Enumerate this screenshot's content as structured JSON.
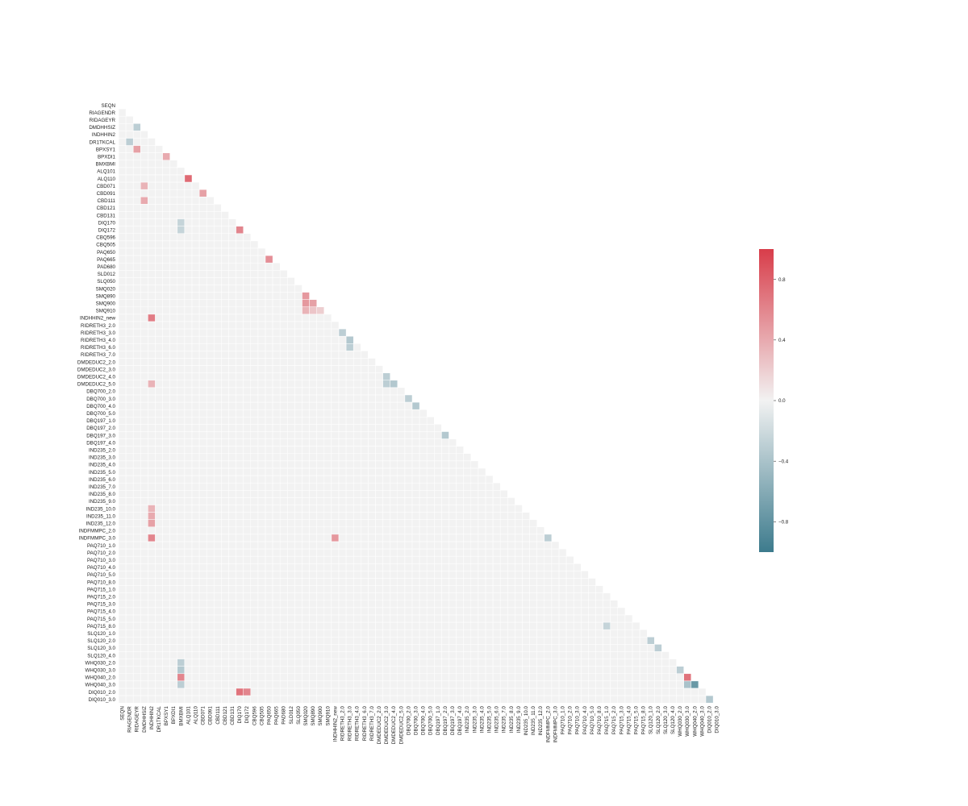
{
  "chart_data": {
    "type": "heatmap",
    "title": "",
    "xlabel": "",
    "ylabel": "",
    "layout": "lower-triangle correlation matrix (diagonal masked)",
    "variables": [
      "SEQN",
      "RIAGENDR",
      "RIDAGEYR",
      "DMDHHSIZ",
      "INDHHIN2",
      "DR1TKCAL",
      "BPXSY1",
      "BPXDI1",
      "BMXBMI",
      "ALQ101",
      "ALQ110",
      "CBD071",
      "CBD091",
      "CBD111",
      "CBD121",
      "CBD131",
      "DIQ170",
      "DIQ172",
      "CBQ596",
      "CBQ505",
      "PAQ650",
      "PAQ665",
      "PAD680",
      "SLD012",
      "SLQ050",
      "SMQ020",
      "SMQ890",
      "SMQ900",
      "SMQ910",
      "INDHHIN2_new",
      "RIDRETH3_2.0",
      "RIDRETH3_3.0",
      "RIDRETH3_4.0",
      "RIDRETH3_6.0",
      "RIDRETH3_7.0",
      "DMDEDUC2_2.0",
      "DMDEDUC2_3.0",
      "DMDEDUC2_4.0",
      "DMDEDUC2_5.0",
      "DBQ700_2.0",
      "DBQ700_3.0",
      "DBQ700_4.0",
      "DBQ700_5.0",
      "DBQ197_1.0",
      "DBQ197_2.0",
      "DBQ197_3.0",
      "DBQ197_4.0",
      "IND235_2.0",
      "IND235_3.0",
      "IND235_4.0",
      "IND235_5.0",
      "IND235_6.0",
      "IND235_7.0",
      "IND235_8.0",
      "IND235_9.0",
      "IND235_10.0",
      "IND235_11.0",
      "IND235_12.0",
      "INDFMMPC_2.0",
      "INDFMMPC_3.0",
      "PAQ710_1.0",
      "PAQ710_2.0",
      "PAQ710_3.0",
      "PAQ710_4.0",
      "PAQ710_5.0",
      "PAQ710_8.0",
      "PAQ715_1.0",
      "PAQ715_2.0",
      "PAQ715_3.0",
      "PAQ715_4.0",
      "PAQ715_5.0",
      "PAQ715_8.0",
      "SLQ120_1.0",
      "SLQ120_2.0",
      "SLQ120_3.0",
      "SLQ120_4.0",
      "WHQ030_2.0",
      "WHQ030_3.0",
      "WHQ040_2.0",
      "WHQ040_3.0",
      "DIQ010_2.0",
      "DIQ010_3.0"
    ],
    "colorbar": {
      "vmin": -1,
      "vmax": 1,
      "ticks": [
        0.8,
        0.4,
        0.0,
        -0.4,
        -0.8
      ],
      "tick_labels": [
        "0.8",
        "0.4",
        "0.0",
        "−0.4",
        "−0.8"
      ]
    },
    "colors": {
      "negative": "#3d7b8d",
      "neutral": "#f2f2f2",
      "positive": "#d83d4a",
      "gridline": "#ffffff"
    },
    "notable_correlations": [
      {
        "row": "ALQ110",
        "col": "ALQ101",
        "value": 0.75
      },
      {
        "row": "DIQ172",
        "col": "DIQ170",
        "value": 0.6
      },
      {
        "row": "INDHHIN2_new",
        "col": "INDHHIN2",
        "value": 0.65
      },
      {
        "row": "INDFMMPC_3.0",
        "col": "INDHHIN2",
        "value": 0.6
      },
      {
        "row": "INDFMMPC_3.0",
        "col": "INDHHIN2_new",
        "value": 0.5
      },
      {
        "row": "IND235_12.0",
        "col": "INDHHIN2",
        "value": 0.45
      },
      {
        "row": "IND235_11.0",
        "col": "INDHHIN2",
        "value": 0.4
      },
      {
        "row": "IND235_10.0",
        "col": "INDHHIN2",
        "value": 0.35
      },
      {
        "row": "DIQ010_2.0",
        "col": "DIQ170",
        "value": 0.7
      },
      {
        "row": "DIQ010_2.0",
        "col": "DIQ172",
        "value": 0.6
      },
      {
        "row": "WHQ040_2.0",
        "col": "BMXBMI",
        "value": 0.6
      },
      {
        "row": "WHQ040_2.0",
        "col": "WHQ030_3.0",
        "value": 0.7
      },
      {
        "row": "WHQ040_3.0",
        "col": "WHQ040_2.0",
        "value": -0.75
      },
      {
        "row": "WHQ040_3.0",
        "col": "WHQ030_3.0",
        "value": -0.4
      },
      {
        "row": "WHQ030_3.0",
        "col": "WHQ030_2.0",
        "value": -0.3
      },
      {
        "row": "WHQ030_2.0",
        "col": "BMXBMI",
        "value": -0.3
      },
      {
        "row": "WHQ030_3.0",
        "col": "BMXBMI",
        "value": -0.35
      },
      {
        "row": "WHQ040_3.0",
        "col": "BMXBMI",
        "value": -0.3
      },
      {
        "row": "SMQ890",
        "col": "SMQ020",
        "value": 0.5
      },
      {
        "row": "SMQ900",
        "col": "SMQ020",
        "value": 0.5
      },
      {
        "row": "SMQ900",
        "col": "SMQ890",
        "value": 0.45
      },
      {
        "row": "SMQ910",
        "col": "SMQ020",
        "value": 0.35
      },
      {
        "row": "SMQ910",
        "col": "SMQ890",
        "value": 0.25
      },
      {
        "row": "SMQ910",
        "col": "SMQ900",
        "value": 0.2
      },
      {
        "row": "PAQ665",
        "col": "PAQ650",
        "value": 0.55
      },
      {
        "row": "BPXDI1",
        "col": "BPXSY1",
        "value": 0.4
      },
      {
        "row": "BPXSY1",
        "col": "RIDAGEYR",
        "value": 0.45
      },
      {
        "row": "CBD091",
        "col": "CBD071",
        "value": 0.45
      },
      {
        "row": "CBD111",
        "col": "DMDHHSIZ",
        "value": 0.4
      },
      {
        "row": "CBD071",
        "col": "DMDHHSIZ",
        "value": 0.35
      },
      {
        "row": "DMDHHSIZ",
        "col": "RIDAGEYR",
        "value": -0.3
      },
      {
        "row": "DR1TKCAL",
        "col": "RIAGENDR",
        "value": -0.3
      },
      {
        "row": "DIQ170",
        "col": "BMXBMI",
        "value": -0.25
      },
      {
        "row": "DIQ172",
        "col": "BMXBMI",
        "value": -0.25
      },
      {
        "row": "DIQ010_3.0",
        "col": "DIQ010_2.0",
        "value": -0.35
      },
      {
        "row": "RIDRETH3_3.0",
        "col": "RIDRETH3_2.0",
        "value": -0.3
      },
      {
        "row": "RIDRETH3_4.0",
        "col": "RIDRETH3_3.0",
        "value": -0.35
      },
      {
        "row": "RIDRETH3_6.0",
        "col": "RIDRETH3_3.0",
        "value": -0.3
      },
      {
        "row": "DMDEDUC2_4.0",
        "col": "DMDEDUC2_3.0",
        "value": -0.3
      },
      {
        "row": "DMDEDUC2_5.0",
        "col": "DMDEDUC2_3.0",
        "value": -0.3
      },
      {
        "row": "DMDEDUC2_5.0",
        "col": "DMDEDUC2_4.0",
        "value": -0.35
      },
      {
        "row": "DMDEDUC2_5.0",
        "col": "INDHHIN2",
        "value": 0.35
      },
      {
        "row": "DBQ700_3.0",
        "col": "DBQ700_2.0",
        "value": -0.3
      },
      {
        "row": "DBQ700_4.0",
        "col": "DBQ700_3.0",
        "value": -0.35
      },
      {
        "row": "DBQ197_3.0",
        "col": "DBQ197_2.0",
        "value": -0.35
      },
      {
        "row": "INDFMMPC_3.0",
        "col": "INDFMMPC_2.0",
        "value": -0.3
      },
      {
        "row": "PAQ715_8.0",
        "col": "PAQ715_1.0",
        "value": -0.25
      },
      {
        "row": "SLQ120_2.0",
        "col": "SLQ120_1.0",
        "value": -0.3
      },
      {
        "row": "SLQ120_3.0",
        "col": "SLQ120_2.0",
        "value": -0.3
      }
    ]
  }
}
